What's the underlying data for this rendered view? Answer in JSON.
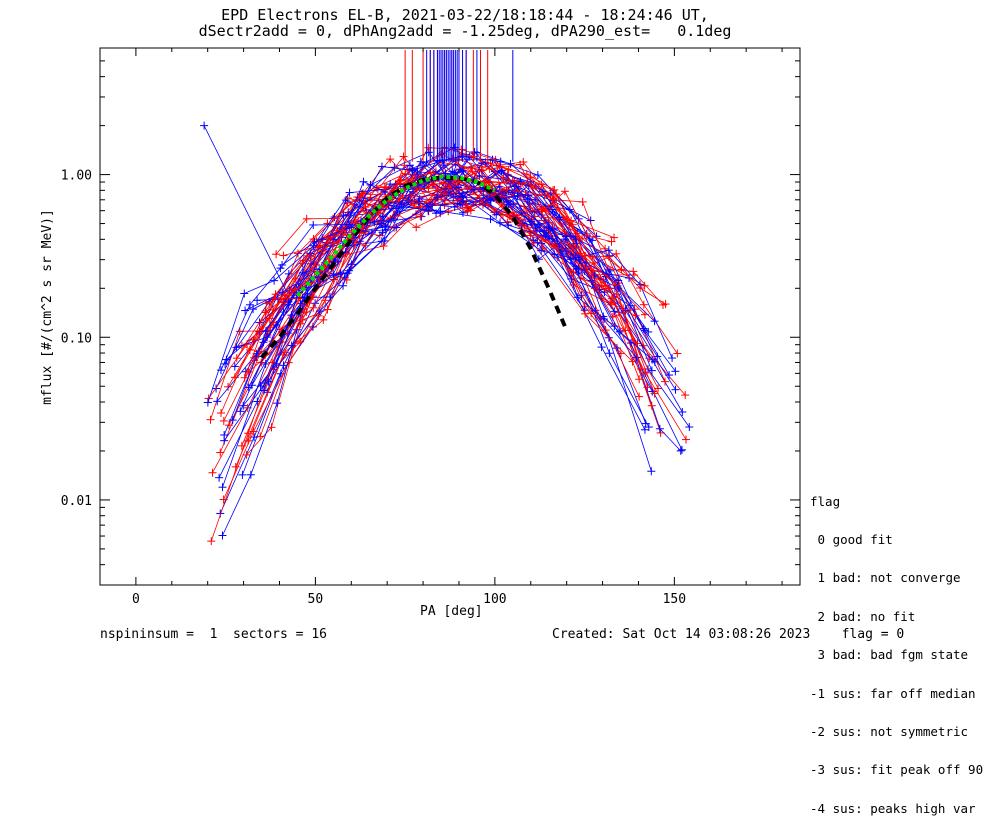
{
  "chart_data": {
    "type": "line",
    "title_line1": "EPD Electrons EL-B, 2021-03-22/18:18:44 - 18:24:46 UT,",
    "title_line2": "dSectr2add = 0, dPhAng2add = -1.25deg, dPA290_est=   0.1deg",
    "xlabel": "PA [deg]",
    "ylabel": "mflux [#/(cm^2 s sr MeV)]",
    "xlim": [
      -10,
      185
    ],
    "ylim": [
      0.003,
      6
    ],
    "yscale": "log",
    "xticks": [
      0,
      50,
      100,
      150
    ],
    "xtick_labels": [
      "0",
      "50",
      "100",
      "150"
    ],
    "yticks": [
      0.01,
      0.1,
      1.0
    ],
    "ytick_labels": [
      "0.01",
      "0.10",
      "1.00"
    ],
    "colors": {
      "red": "#ff0000",
      "blue": "#0000ff",
      "green": "#00dd00",
      "black": "#000000"
    },
    "median_fit": {
      "x": [
        35,
        40,
        45,
        50,
        55,
        60,
        65,
        70,
        75,
        80,
        85,
        90,
        95,
        100,
        105,
        110,
        115,
        120
      ],
      "y": [
        0.075,
        0.1,
        0.14,
        0.2,
        0.28,
        0.4,
        0.55,
        0.72,
        0.85,
        0.93,
        0.96,
        0.95,
        0.9,
        0.75,
        0.55,
        0.35,
        0.2,
        0.11
      ]
    },
    "gaussian_fit": {
      "x": [
        45,
        50,
        55,
        60,
        65,
        70,
        75,
        80,
        85,
        90,
        95,
        100
      ],
      "y": [
        0.18,
        0.24,
        0.32,
        0.43,
        0.56,
        0.7,
        0.82,
        0.92,
        0.97,
        0.96,
        0.9,
        0.8
      ]
    },
    "spike_x_red": [
      75,
      77,
      80,
      82,
      83,
      84,
      85,
      86,
      88,
      90,
      92,
      94,
      96,
      98
    ],
    "spike_x_blue": [
      81,
      82,
      83,
      84,
      84.5,
      85,
      85.5,
      86,
      86.5,
      87,
      87.5,
      88,
      88.5,
      89,
      89.5,
      90,
      91,
      92,
      95,
      105
    ],
    "outlier_point": {
      "x": 19,
      "y": 2.0
    }
  },
  "footer": {
    "left": "nspininsum =  1  sectors = 16",
    "right": "Created: Sat Oct 14 03:08:26 2023    flag = 0"
  },
  "legend": {
    "title": "flag",
    "items": [
      " 0 good fit",
      " 1 bad: not converge",
      " 2 bad: no fit",
      " 3 bad: bad fgm state",
      "-1 sus: far off median",
      "-2 sus: not symmetric",
      "-3 sus: fit peak off 90",
      "-4 sus: peaks high var"
    ]
  }
}
